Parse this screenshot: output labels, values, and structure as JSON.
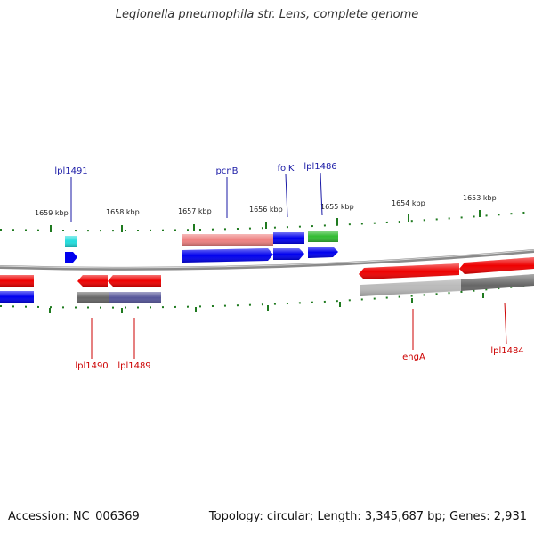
{
  "title": "Legionella pneumophila str. Lens, complete genome",
  "accession": "Accession: NC_006369",
  "stats": "Topology: circular; Length: 3,345,687 bp; Genes: 2,931",
  "colors": {
    "backbone": "#8a8a8a",
    "tick": "#1f7a1f",
    "forward_label": "#1a1aa6",
    "reverse_label": "#cc0000",
    "cds_forward": "#0000ee",
    "cds_reverse": "#ee0000",
    "cog_cyan": "#22dddd",
    "cog_pink": "#ee8080",
    "cog_green": "#33bb33",
    "cog_dark_gray": "#666666",
    "cog_slate_blue": "#555599",
    "cog_light_gray": "#bbbbbb"
  },
  "ticks": [
    "1659 kbp",
    "1658 kbp",
    "1657 kbp",
    "1656 kbp",
    "1655 kbp",
    "1654 kbp",
    "1653 kbp"
  ],
  "genes": [
    {
      "name": "lpl1491",
      "strand": "forward"
    },
    {
      "name": "pcnB",
      "strand": "forward"
    },
    {
      "name": "folK",
      "strand": "forward"
    },
    {
      "name": "lpl1486",
      "strand": "forward"
    },
    {
      "name": "lpl1490",
      "strand": "reverse"
    },
    {
      "name": "lpl1489",
      "strand": "reverse"
    },
    {
      "name": "engA",
      "strand": "reverse"
    },
    {
      "name": "lpl1484",
      "strand": "reverse"
    }
  ]
}
